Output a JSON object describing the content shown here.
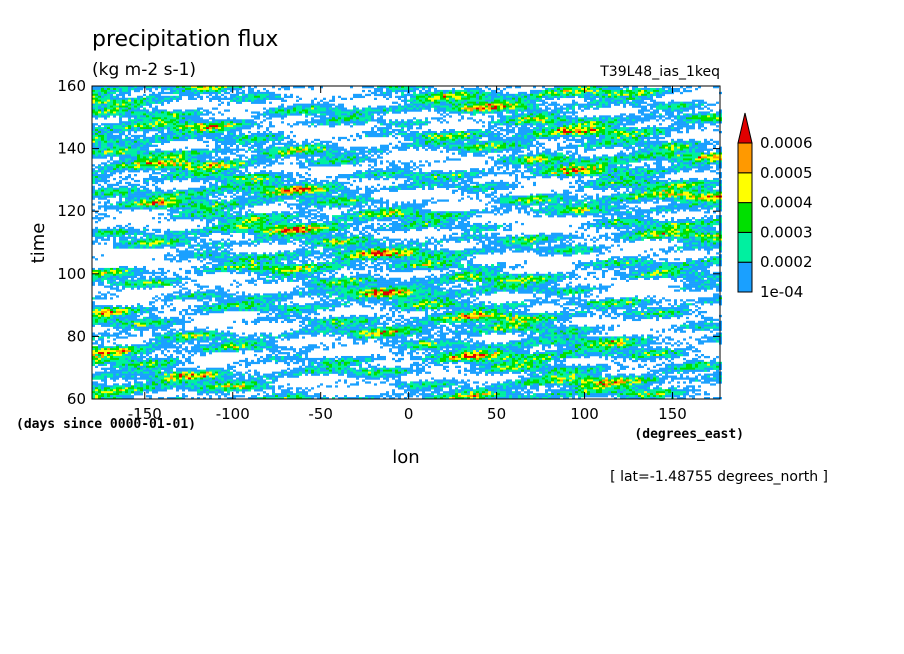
{
  "chart_data": {
    "type": "heatmap",
    "title": "precipitation flux",
    "subtitle": "(kg m-2 s-1)",
    "dataset_label": "T39L48_ias_1keq",
    "xlabel": "lon",
    "xunits": "(degrees_east)",
    "ylabel": "time",
    "yunits": "(days since 0000-01-01)",
    "slice_note": "[ lat=-1.48755 degrees_north ]",
    "xlim": [
      -180,
      177
    ],
    "ylim": [
      60,
      160
    ],
    "x_ticks": [
      "-150",
      "-100",
      "-50",
      "0",
      "50",
      "100",
      "150"
    ],
    "x_tick_values": [
      -150,
      -100,
      -50,
      0,
      50,
      100,
      150
    ],
    "y_ticks": [
      "60",
      "80",
      "100",
      "120",
      "140",
      "160"
    ],
    "y_tick_values": [
      60,
      80,
      100,
      120,
      140,
      160
    ],
    "colorbar": {
      "levels": [
        "1e-04",
        "0.0002",
        "0.0003",
        "0.0004",
        "0.0005",
        "0.0006"
      ],
      "level_values": [
        0.0001,
        0.0002,
        0.0003,
        0.0004,
        0.0005,
        0.0006
      ],
      "colors": [
        "#1aa0ff",
        "#00f0a0",
        "#00e000",
        "#ffff00",
        "#ff9900",
        "#e00000"
      ],
      "extend": "max"
    },
    "grid": false
  }
}
